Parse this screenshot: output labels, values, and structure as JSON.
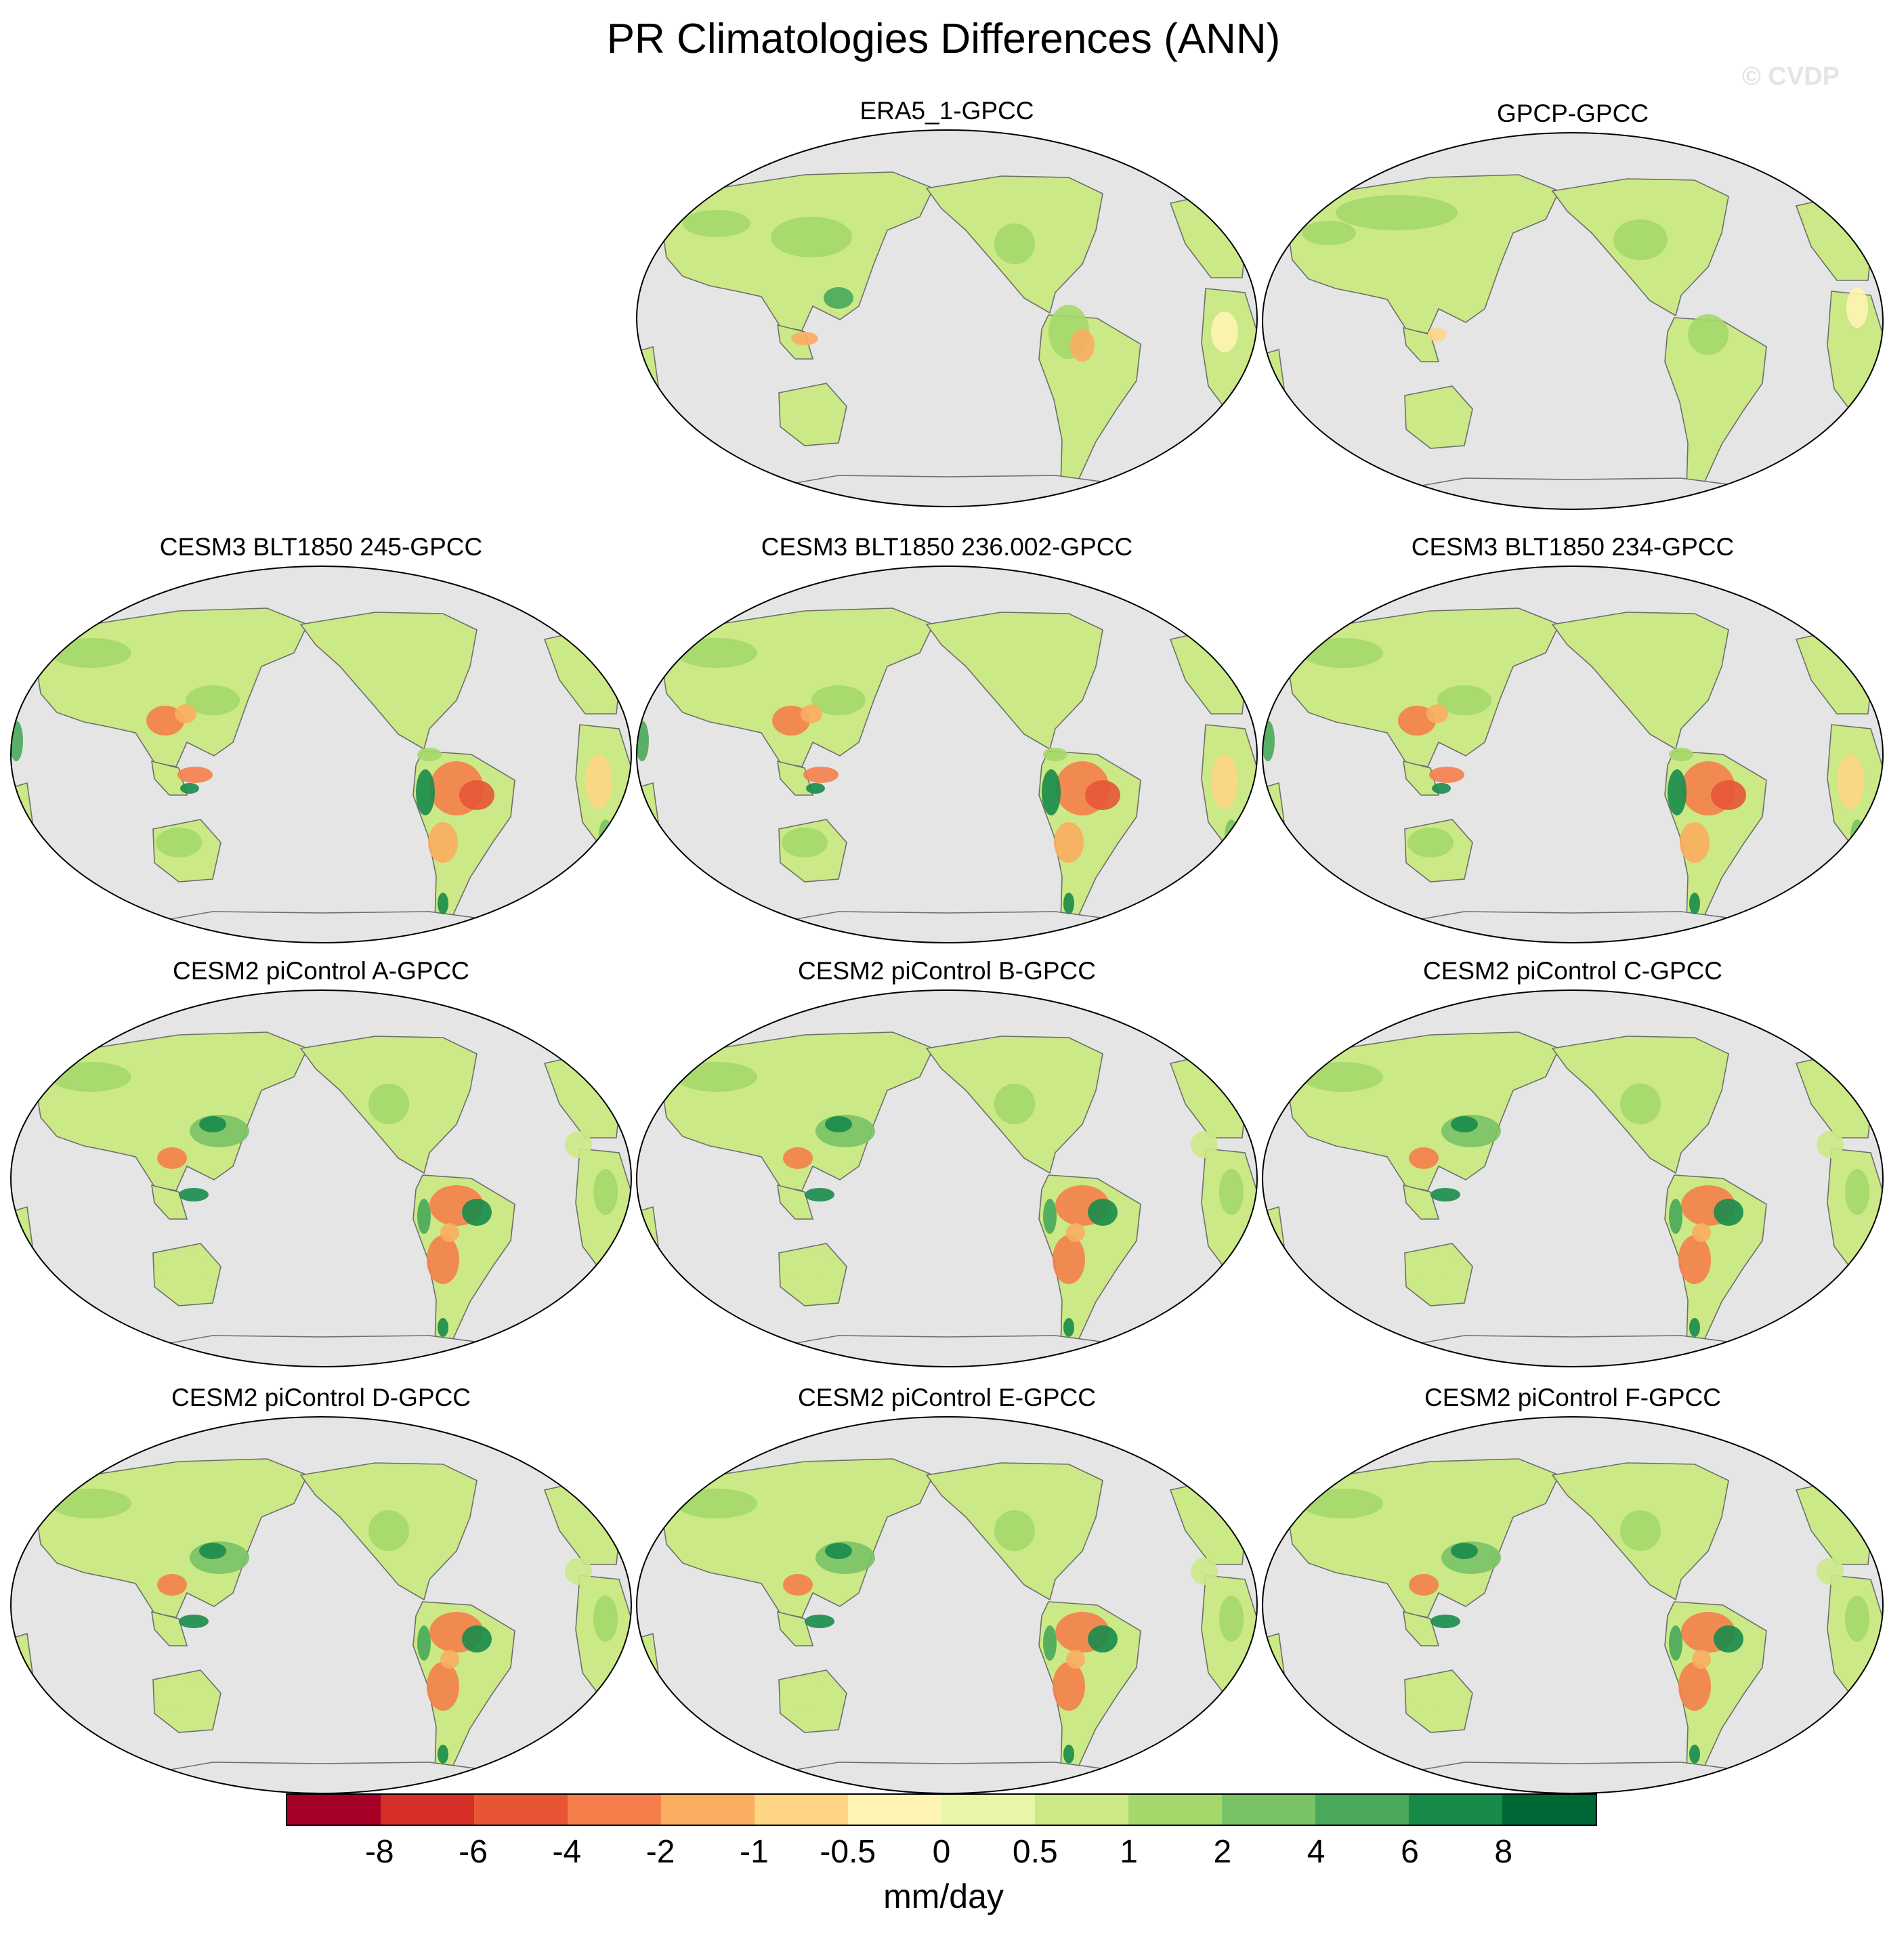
{
  "title": "PR Climatologies Differences (ANN)",
  "watermark": "© CVDP",
  "panels": [
    {
      "title": "ERA5_1-GPCC",
      "variant": "obs"
    },
    {
      "title": "GPCP-GPCC",
      "variant": "obs2"
    },
    {
      "title": "CESM3 BLT1850 245-GPCC",
      "variant": "cesm3"
    },
    {
      "title": "CESM3 BLT1850 236.002-GPCC",
      "variant": "cesm3"
    },
    {
      "title": "CESM3 BLT1850 234-GPCC",
      "variant": "cesm3"
    },
    {
      "title": "CESM2 piControl A-GPCC",
      "variant": "cesm2"
    },
    {
      "title": "CESM2 piControl B-GPCC",
      "variant": "cesm2"
    },
    {
      "title": "CESM2 piControl C-GPCC",
      "variant": "cesm2"
    },
    {
      "title": "CESM2 piControl D-GPCC",
      "variant": "cesm2"
    },
    {
      "title": "CESM2 piControl E-GPCC",
      "variant": "cesm2"
    },
    {
      "title": "CESM2 piControl F-GPCC",
      "variant": "cesm2"
    }
  ],
  "colorbar": {
    "unit": "mm/day",
    "labels": [
      "-8",
      "-6",
      "-4",
      "-2",
      "-1",
      "-0.5",
      "0",
      "0.5",
      "1",
      "2",
      "4",
      "6",
      "8"
    ],
    "colors": [
      "#a50026",
      "#d62f27",
      "#e75535",
      "#f57f4b",
      "#fbad60",
      "#fdd585",
      "#fff4b3",
      "#e8f6a8",
      "#cbe986",
      "#a4d86a",
      "#79c266",
      "#49a85a",
      "#188b4b",
      "#006837"
    ]
  },
  "legend_colors": {
    "ocean": "#e5e5e5",
    "coastline": "#6e6e6e"
  }
}
